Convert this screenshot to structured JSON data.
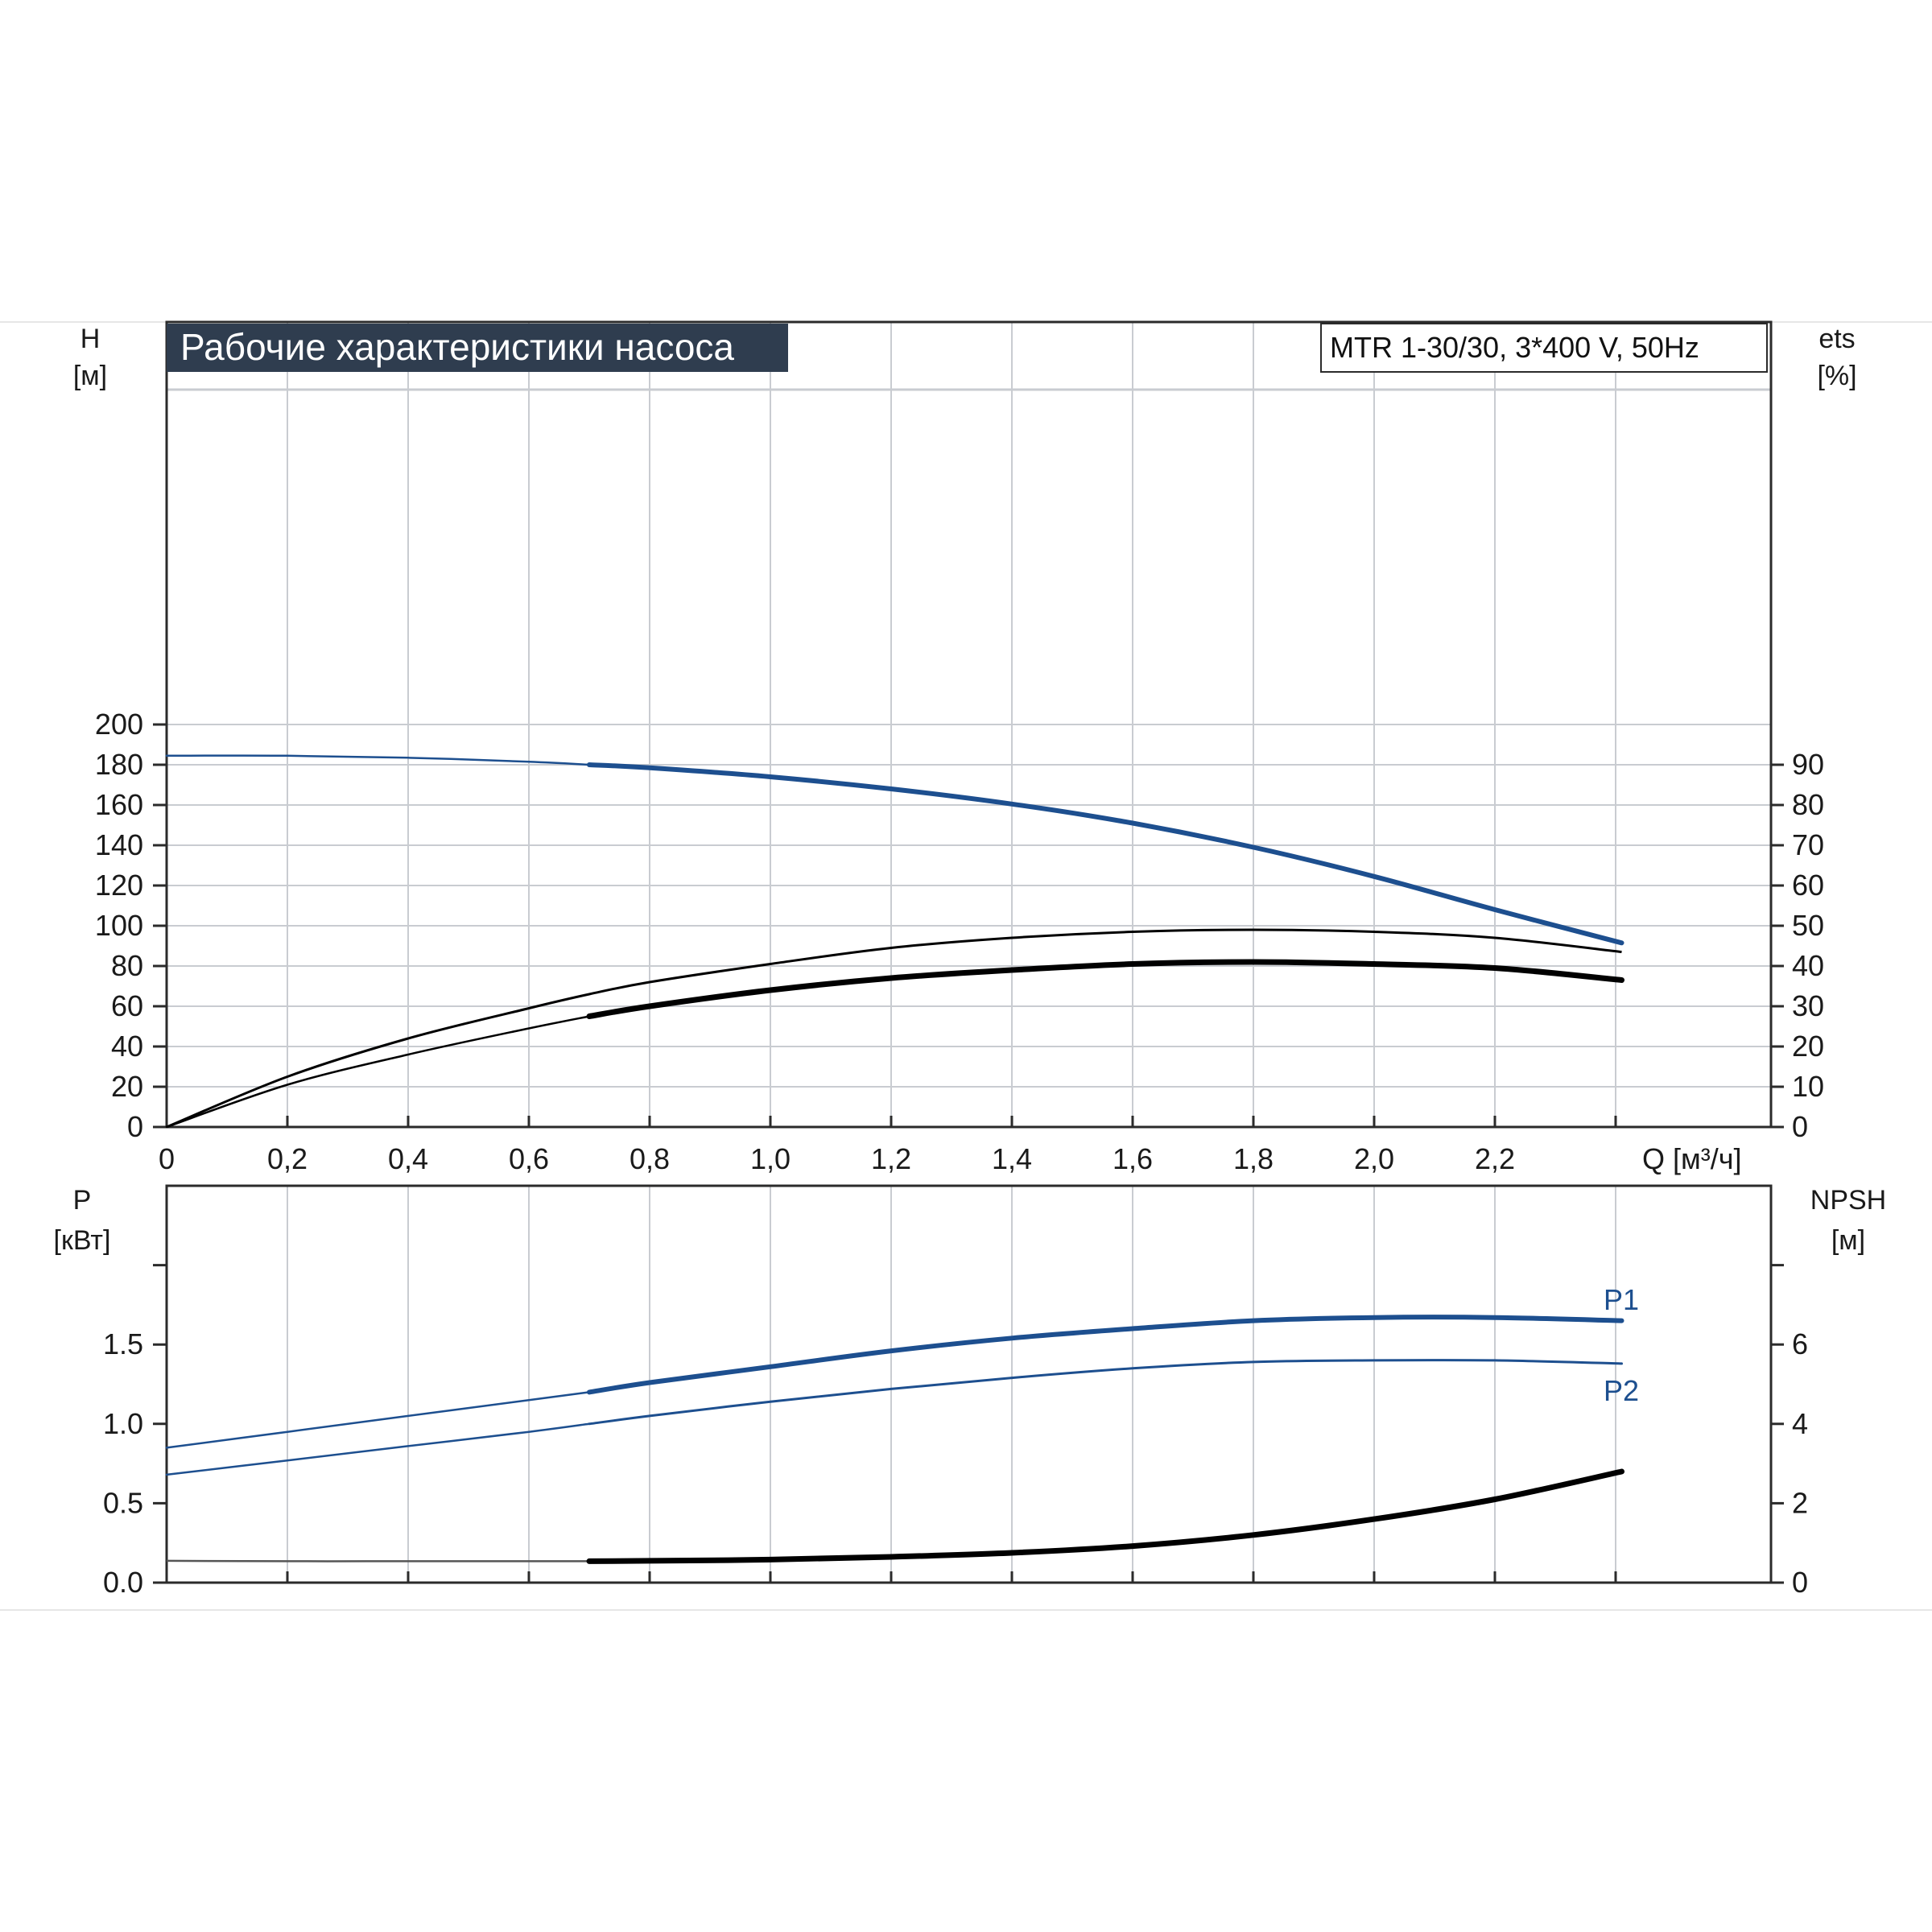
{
  "title": "Рабочие характеристики насоса",
  "model": "MTR 1-30/30, 3*400 V, 50Hz",
  "colors": {
    "blue": "#1d4f8f",
    "black": "#000000",
    "title_bg": "#2f3d4f",
    "grid": "#c9ccd1"
  },
  "chart_data": [
    {
      "type": "line",
      "panel": "head-efficiency",
      "ylabel": "H",
      "yunit": "[м]",
      "y2label": "ets",
      "y2unit": "[%]",
      "xlabel": "Q [м³/ч]",
      "xlim": [
        0,
        2.5
      ],
      "ylim": [
        0,
        220
      ],
      "y2lim": [
        0,
        110
      ],
      "xticks": [
        "0",
        "0,2",
        "0,4",
        "0,6",
        "0,8",
        "1,0",
        "1,2",
        "1,4",
        "1,6",
        "1,8",
        "2,0",
        "2,2"
      ],
      "yticks": [
        "0",
        "20",
        "40",
        "60",
        "80",
        "100",
        "120",
        "140",
        "160",
        "180",
        "200"
      ],
      "y2ticks": [
        "0",
        "10",
        "20",
        "30",
        "40",
        "50",
        "60",
        "70",
        "80",
        "90"
      ],
      "grid": true,
      "series": [
        {
          "key": "head",
          "axis": "left",
          "color": "#1d4f8f",
          "x": [
            0,
            0.2,
            0.4,
            0.6,
            0.7,
            0.8,
            1.0,
            1.2,
            1.4,
            1.6,
            1.8,
            2.0,
            2.2,
            2.41
          ],
          "y": [
            184.5,
            184.5,
            183.5,
            181.5,
            180,
            178.5,
            174,
            168,
            160.5,
            151,
            139,
            124.5,
            108,
            91.5
          ]
        },
        {
          "key": "efficiency-thin",
          "axis": "right",
          "color": "#000000",
          "x": [
            0,
            0.2,
            0.4,
            0.6,
            0.7,
            0.8,
            1.0,
            1.2,
            1.4,
            1.6,
            1.8,
            2.0,
            2.2,
            2.41
          ],
          "y": [
            0,
            12.5,
            22,
            29.5,
            33,
            36,
            40.5,
            44.5,
            47,
            48.5,
            49,
            48.5,
            47,
            43.5
          ]
        },
        {
          "key": "efficiency-thick",
          "axis": "right",
          "color": "#000000",
          "x": [
            0,
            0.2,
            0.4,
            0.6,
            0.7,
            0.8,
            1.0,
            1.2,
            1.4,
            1.6,
            1.8,
            2.0,
            2.2,
            2.41
          ],
          "y": [
            0,
            10.5,
            18,
            24.5,
            27.5,
            30,
            34,
            37,
            39,
            40.5,
            41,
            40.5,
            39.5,
            36.5
          ]
        }
      ]
    },
    {
      "type": "line",
      "panel": "power-npsh",
      "ylabel": "P",
      "yunit": "[кВт]",
      "y2label": "NPSH",
      "y2unit": "[м]",
      "xlim": [
        0,
        2.5
      ],
      "ylim": [
        0,
        2.0
      ],
      "y2lim": [
        0,
        8
      ],
      "yticks": [
        "0.0",
        "0.5",
        "1.0",
        "1.5"
      ],
      "y2ticks": [
        "0",
        "2",
        "4",
        "6"
      ],
      "grid": true,
      "series": [
        {
          "name": "P1",
          "axis": "left",
          "color": "#1d4f8f",
          "x": [
            0,
            0.2,
            0.4,
            0.6,
            0.7,
            0.8,
            1.0,
            1.2,
            1.4,
            1.6,
            1.8,
            2.0,
            2.2,
            2.41
          ],
          "y": [
            0.85,
            0.95,
            1.05,
            1.15,
            1.2,
            1.26,
            1.36,
            1.46,
            1.54,
            1.6,
            1.65,
            1.67,
            1.67,
            1.65
          ]
        },
        {
          "name": "P2",
          "axis": "left",
          "color": "#1d4f8f",
          "x": [
            0,
            0.2,
            0.4,
            0.6,
            0.7,
            0.8,
            1.0,
            1.2,
            1.4,
            1.6,
            1.8,
            2.0,
            2.2,
            2.41
          ],
          "y": [
            0.68,
            0.77,
            0.86,
            0.95,
            1.0,
            1.05,
            1.14,
            1.22,
            1.29,
            1.35,
            1.39,
            1.4,
            1.4,
            1.38
          ]
        },
        {
          "key": "npsh",
          "axis": "right",
          "color": "#000000",
          "x": [
            0,
            0.2,
            0.4,
            0.6,
            0.7,
            0.8,
            1.0,
            1.2,
            1.4,
            1.6,
            1.8,
            2.0,
            2.2,
            2.41
          ],
          "y": [
            0.55,
            0.54,
            0.54,
            0.54,
            0.54,
            0.55,
            0.58,
            0.65,
            0.75,
            0.92,
            1.2,
            1.6,
            2.1,
            2.8
          ]
        }
      ]
    }
  ]
}
